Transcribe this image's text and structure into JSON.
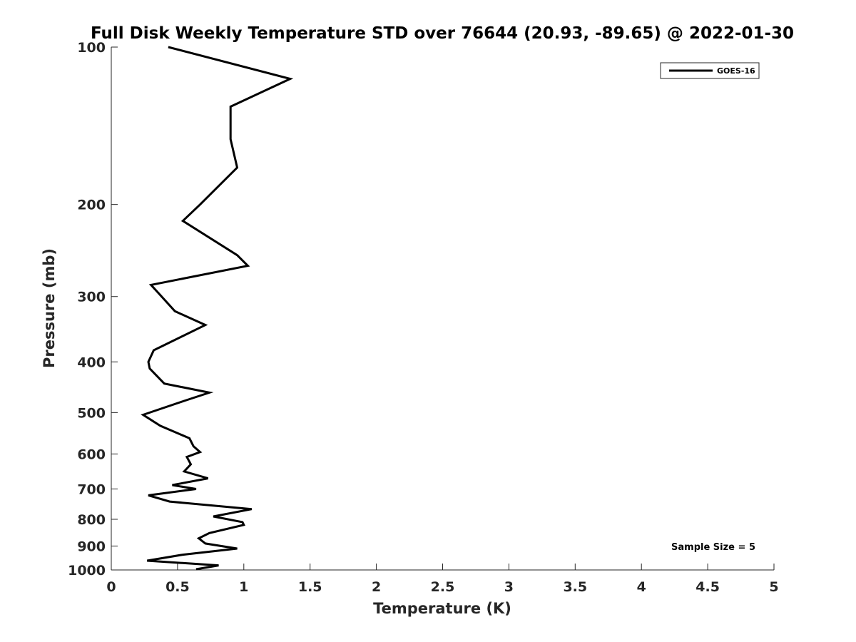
{
  "chart_data": {
    "type": "line",
    "title": "Full Disk Weekly Temperature STD over 76644 (20.93, -89.65) @ 2022-01-30",
    "xlabel": "Temperature (K)",
    "ylabel": "Pressure (mb)",
    "xlim": [
      0,
      5
    ],
    "ylim": [
      100,
      1000
    ],
    "yscale": "log",
    "y_reversed": true,
    "x_ticks": [
      "0",
      "0.5",
      "1",
      "1.5",
      "2",
      "2.5",
      "3",
      "3.5",
      "4",
      "4.5",
      "5"
    ],
    "y_ticks": [
      "100",
      "200",
      "300",
      "400",
      "500",
      "600",
      "700",
      "800",
      "900",
      "1000"
    ],
    "grid": false,
    "legend_position": "top-right",
    "annotation": "Sample Size = 5",
    "line_color": "#000000",
    "series": [
      {
        "name": "GOES-16",
        "points": [
          [
            0.43,
            100
          ],
          [
            1.35,
            115
          ],
          [
            0.9,
            130
          ],
          [
            0.9,
            150
          ],
          [
            0.95,
            170
          ],
          [
            0.67,
            200
          ],
          [
            0.54,
            215
          ],
          [
            0.95,
            250
          ],
          [
            1.03,
            262
          ],
          [
            0.3,
            285
          ],
          [
            0.38,
            300
          ],
          [
            0.48,
            320
          ],
          [
            0.71,
            340
          ],
          [
            0.32,
            380
          ],
          [
            0.28,
            400
          ],
          [
            0.29,
            412
          ],
          [
            0.4,
            440
          ],
          [
            0.74,
            458
          ],
          [
            0.55,
            475
          ],
          [
            0.24,
            505
          ],
          [
            0.37,
            530
          ],
          [
            0.59,
            560
          ],
          [
            0.62,
            580
          ],
          [
            0.67,
            595
          ],
          [
            0.57,
            608
          ],
          [
            0.6,
            628
          ],
          [
            0.55,
            648
          ],
          [
            0.73,
            668
          ],
          [
            0.46,
            688
          ],
          [
            0.64,
            700
          ],
          [
            0.28,
            720
          ],
          [
            0.44,
            740
          ],
          [
            1.06,
            765
          ],
          [
            0.77,
            790
          ],
          [
            0.99,
            810
          ],
          [
            1.0,
            820
          ],
          [
            0.74,
            850
          ],
          [
            0.66,
            870
          ],
          [
            0.71,
            890
          ],
          [
            0.95,
            910
          ],
          [
            0.54,
            935
          ],
          [
            0.27,
            960
          ],
          [
            0.81,
            980
          ],
          [
            0.64,
            997
          ]
        ]
      }
    ]
  }
}
